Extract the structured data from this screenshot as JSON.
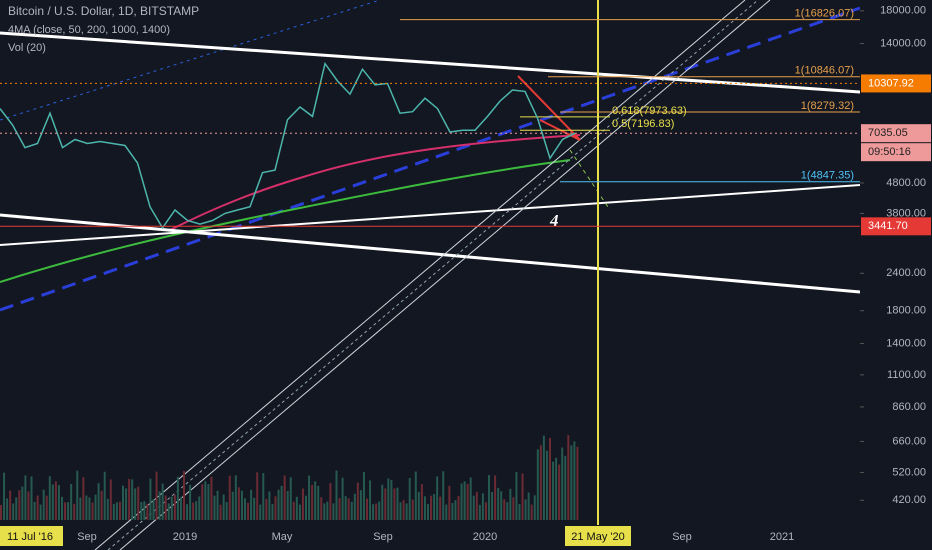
{
  "chart_data": {
    "type": "line",
    "title": "Bitcoin / U.S. Dollar, 1D, BITSTAMP",
    "indicators": [
      "4MA (close, 50, 200, 1000, 1400)",
      "Vol (20)"
    ],
    "log_scale": true,
    "ylim": [
      361,
      19560
    ],
    "yticks": [
      {
        "value": 420,
        "label": "420.00"
      },
      {
        "value": 520,
        "label": "520.00"
      },
      {
        "value": 660,
        "label": "660.00"
      },
      {
        "value": 860,
        "label": "860.00"
      },
      {
        "value": 1100,
        "label": "1100.00"
      },
      {
        "value": 1400,
        "label": "1400.00"
      },
      {
        "value": 1800,
        "label": "1800.00"
      },
      {
        "value": 2400,
        "label": "2400.00"
      },
      {
        "value": 3800,
        "label": "3800.00"
      },
      {
        "value": 4800,
        "label": "4800.00"
      },
      {
        "value": 14000,
        "label": "14000.00"
      },
      {
        "value": 18000,
        "label": "18000.00"
      }
    ],
    "xlabels": [
      "11 Jul '16",
      "Sep",
      "2019",
      "May",
      "Sep",
      "2020",
      "21 May '20",
      "Sep",
      "2021"
    ],
    "series": [
      {
        "name": "BTCUSD",
        "color": "#4db6ac",
        "values": [
          8500,
          7500,
          6300,
          6500,
          8200,
          6300,
          6700,
          6500,
          6600,
          6500,
          6400,
          5600,
          4000,
          3400,
          3900,
          3600,
          3500,
          3600,
          3800,
          3900,
          4000,
          5200,
          5300,
          7800,
          8600,
          8000,
          12000,
          10500,
          9500,
          11500,
          10200,
          10300,
          8200,
          8300,
          9200,
          8500,
          7100,
          7200,
          7200,
          8000,
          9000,
          9800,
          9700,
          7900,
          5800,
          6700,
          7035.05
        ]
      }
    ],
    "price_labels": [
      {
        "value": 10307.92,
        "color": "#f57c00"
      },
      {
        "value": 7035.05,
        "color": "#ef9a9a"
      },
      {
        "value": 3441.7,
        "label": "3441.70",
        "color": "#e53935"
      }
    ],
    "countdown": "09:50:16",
    "levels": [
      {
        "label": "1(16826.07)",
        "value": 16826.07,
        "color": "#e6a04b"
      },
      {
        "label": "1(10846.07)",
        "value": 10846.07,
        "color": "#e6a04b"
      },
      {
        "label": "1(8279.32)",
        "value": 8279.32,
        "color": "#e6a04b"
      },
      {
        "label": "0.618(7973.63)",
        "value": 7973.63,
        "color": "#e8e04b"
      },
      {
        "label": "0.5(7196.83)",
        "value": 7196.83,
        "color": "#e8e04b"
      },
      {
        "label": "1(4847.35)",
        "value": 4847.35,
        "color": "#4fc3f7"
      }
    ],
    "annotation": "4"
  }
}
